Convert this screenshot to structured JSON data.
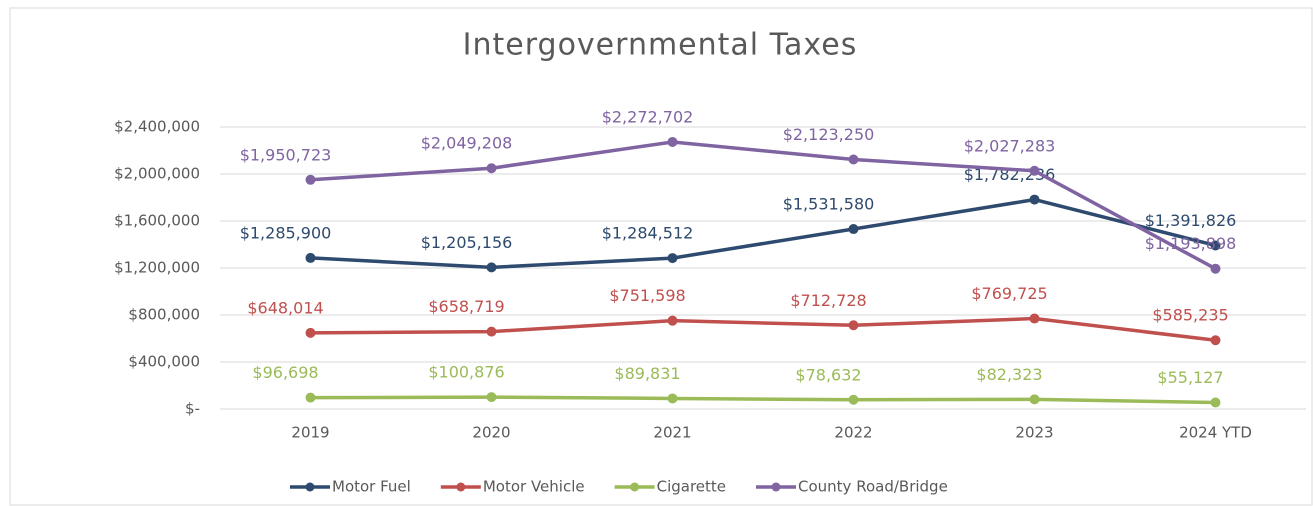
{
  "chart_data": {
    "type": "line",
    "title": "Intergovernmental Taxes",
    "categories": [
      "2019",
      "2020",
      "2021",
      "2022",
      "2023",
      "2024 YTD"
    ],
    "ylim": [
      0,
      2400000
    ],
    "yticks": [
      {
        "value": 0,
        "label": "$-"
      },
      {
        "value": 400000,
        "label": "$400,000"
      },
      {
        "value": 800000,
        "label": "$800,000"
      },
      {
        "value": 1200000,
        "label": "$1,200,000"
      },
      {
        "value": 1600000,
        "label": "$1,600,000"
      },
      {
        "value": 2000000,
        "label": "$2,000,000"
      },
      {
        "value": 2400000,
        "label": "$2,400,000"
      }
    ],
    "grid": true,
    "legend": "bottom",
    "series": [
      {
        "name": "Motor Fuel",
        "color": "#2e4a6e",
        "values": [
          1285900,
          1205156,
          1284512,
          1531580,
          1782236,
          1391826
        ],
        "value_labels": [
          "$1,285,900",
          "$1,205,156",
          "$1,284,512",
          "$1,531,580",
          "$1,782,236",
          "$1,391,826"
        ]
      },
      {
        "name": "Motor Vehicle",
        "color": "#c0504d",
        "values": [
          648014,
          658719,
          751598,
          712728,
          769725,
          585235
        ],
        "value_labels": [
          "$648,014",
          "$658,719",
          "$751,598",
          "$712,728",
          "$769,725",
          "$585,235"
        ]
      },
      {
        "name": "Cigarette",
        "color": "#9bbb59",
        "values": [
          96698,
          100876,
          89831,
          78632,
          82323,
          55127
        ],
        "value_labels": [
          "$96,698",
          "$100,876",
          "$89,831",
          "$78,632",
          "$82,323",
          "$55,127"
        ]
      },
      {
        "name": "County Road/Bridge",
        "color": "#8064a2",
        "values": [
          1950723,
          2049208,
          2272702,
          2123250,
          2027283,
          1193898
        ],
        "value_labels": [
          "$1,950,723",
          "$2,049,208",
          "$2,272,702",
          "$2,123,250",
          "$2,027,283",
          "$1,193,898"
        ]
      }
    ]
  }
}
